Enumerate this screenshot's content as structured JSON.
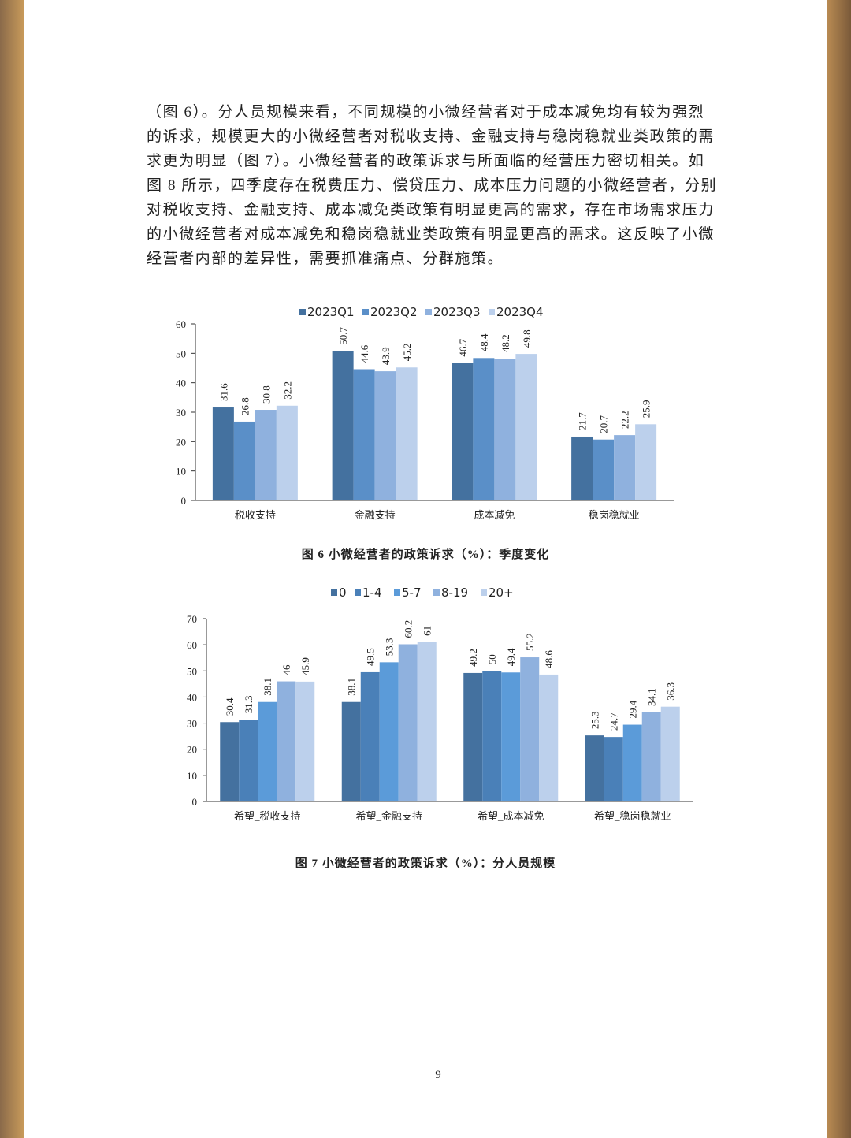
{
  "paragraph": [
    "（图 6）。分人员规模来看，不同规模的小微经营者对于成本减免均有较为强烈",
    "的诉求，规模更大的小微经营者对税收支持、金融支持与稳岗稳就业类政策的需",
    "求更为明显（图 7）。小微经营者的政策诉求与所面临的经营压力密切相关。如",
    "图 8 所示，四季度存在税费压力、偿贷压力、成本压力问题的小微经营者，分别",
    "对税收支持、金融支持、成本减免类政策有明显更高的需求，存在市场需求压力",
    "的小微经营者对成本减免和稳岗稳就业类政策有明显更高的需求。这反映了小微",
    "经营者内部的差异性，需要抓准痛点、分群施策。"
  ],
  "chart_data": [
    {
      "type": "bar",
      "caption": "图 6  小微经营者的政策诉求（%）：季度变化",
      "categories": [
        "税收支持",
        "金融支持",
        "成本减免",
        "稳岗稳就业"
      ],
      "series": [
        {
          "name": "2023Q1",
          "color": "#44719f",
          "values": [
            31.6,
            50.7,
            46.7,
            21.7
          ]
        },
        {
          "name": "2023Q2",
          "color": "#5a8fc8",
          "values": [
            26.8,
            44.6,
            48.4,
            20.7
          ]
        },
        {
          "name": "2023Q3",
          "color": "#8fb1de",
          "values": [
            30.8,
            43.9,
            48.2,
            22.2
          ]
        },
        {
          "name": "2023Q4",
          "color": "#bcd0ec",
          "values": [
            32.2,
            45.2,
            49.8,
            25.9
          ]
        }
      ],
      "ylim": [
        0,
        60
      ],
      "yticks": [
        0,
        10,
        20,
        30,
        40,
        50,
        60
      ]
    },
    {
      "type": "bar",
      "caption": "图 7  小微经营者的政策诉求（%）：分人员规模",
      "categories": [
        "希望_税收支持",
        "希望_金融支持",
        "希望_成本减免",
        "希望_稳岗稳就业"
      ],
      "series": [
        {
          "name": "0",
          "color": "#44719f",
          "values": [
            30.4,
            38.1,
            49.2,
            25.3
          ]
        },
        {
          "name": "1-4",
          "color": "#4a80b8",
          "values": [
            31.3,
            49.5,
            50.0,
            24.7
          ]
        },
        {
          "name": "5-7",
          "color": "#5b9bd9",
          "values": [
            38.1,
            53.3,
            49.4,
            29.4
          ]
        },
        {
          "name": "8-19",
          "color": "#8fb1de",
          "values": [
            46.0,
            60.2,
            55.2,
            34.1
          ]
        },
        {
          "name": "20+",
          "color": "#bcd0ec",
          "values": [
            45.9,
            61.0,
            48.6,
            36.3
          ]
        }
      ],
      "ylim": [
        0,
        70
      ],
      "yticks": [
        0,
        10,
        20,
        30,
        40,
        50,
        60,
        70
      ]
    }
  ],
  "page_number": "9"
}
